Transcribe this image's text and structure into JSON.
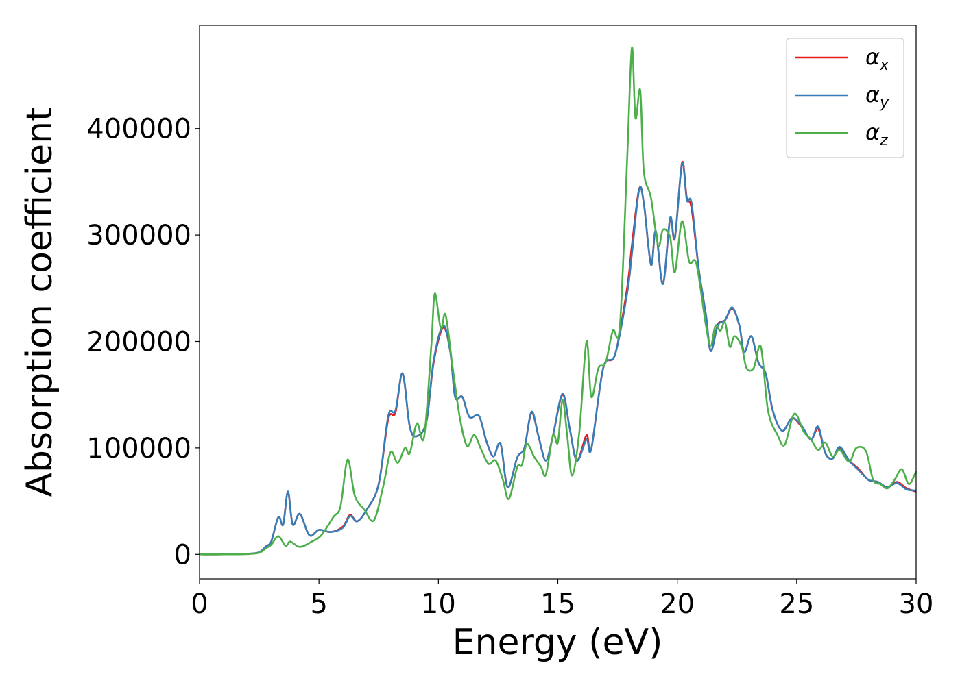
{
  "chart_data": {
    "type": "line",
    "xlabel": "Energy (eV)",
    "ylabel": "Absorption coefficient",
    "xlim": [
      0,
      30
    ],
    "ylim": [
      -23000,
      497000
    ],
    "xticks": [
      0,
      5,
      10,
      15,
      20,
      25,
      30
    ],
    "xtick_labels": [
      "0",
      "5",
      "10",
      "15",
      "20",
      "25",
      "30"
    ],
    "yticks": [
      0,
      100000,
      200000,
      300000,
      400000
    ],
    "ytick_labels": [
      "0",
      "100000",
      "200000",
      "300000",
      "400000"
    ],
    "grid": false,
    "legend_position": "top-right",
    "series": [
      {
        "name": "α_x",
        "label_main": "α",
        "label_sub": "x",
        "color": "#e41a1c",
        "points": [
          [
            0,
            0
          ],
          [
            1,
            0
          ],
          [
            2,
            500
          ],
          [
            2.5,
            2000
          ],
          [
            2.8,
            8000
          ],
          [
            3.0,
            12000
          ],
          [
            3.3,
            35000
          ],
          [
            3.5,
            28000
          ],
          [
            3.7,
            59000
          ],
          [
            3.9,
            28000
          ],
          [
            4.2,
            38000
          ],
          [
            4.6,
            18000
          ],
          [
            5.0,
            23000
          ],
          [
            5.5,
            21000
          ],
          [
            6.0,
            26000
          ],
          [
            6.3,
            37000
          ],
          [
            6.6,
            31000
          ],
          [
            7.0,
            42000
          ],
          [
            7.5,
            66000
          ],
          [
            7.9,
            127000
          ],
          [
            8.2,
            133000
          ],
          [
            8.5,
            170000
          ],
          [
            8.8,
            120000
          ],
          [
            9.1,
            111000
          ],
          [
            9.5,
            125000
          ],
          [
            9.8,
            180000
          ],
          [
            10.2,
            213000
          ],
          [
            10.5,
            190000
          ],
          [
            10.7,
            148000
          ],
          [
            11.0,
            148000
          ],
          [
            11.3,
            129000
          ],
          [
            11.7,
            130000
          ],
          [
            12.0,
            107000
          ],
          [
            12.3,
            92000
          ],
          [
            12.6,
            104000
          ],
          [
            12.9,
            63000
          ],
          [
            13.3,
            91000
          ],
          [
            13.6,
            100000
          ],
          [
            13.9,
            133000
          ],
          [
            14.2,
            110000
          ],
          [
            14.5,
            88000
          ],
          [
            14.8,
            112000
          ],
          [
            15.2,
            150000
          ],
          [
            15.5,
            118000
          ],
          [
            15.8,
            88000
          ],
          [
            16.2,
            112000
          ],
          [
            16.4,
            99000
          ],
          [
            16.9,
            175000
          ],
          [
            17.4,
            188000
          ],
          [
            17.9,
            250000
          ],
          [
            18.1,
            290000
          ],
          [
            18.4,
            343000
          ],
          [
            18.6,
            330000
          ],
          [
            18.9,
            272000
          ],
          [
            19.1,
            303000
          ],
          [
            19.4,
            254000
          ],
          [
            19.7,
            315000
          ],
          [
            19.9,
            297000
          ],
          [
            20.2,
            368000
          ],
          [
            20.4,
            335000
          ],
          [
            20.6,
            325000
          ],
          [
            20.9,
            268000
          ],
          [
            21.2,
            225000
          ],
          [
            21.4,
            191000
          ],
          [
            21.7,
            216000
          ],
          [
            22.0,
            220000
          ],
          [
            22.3,
            231000
          ],
          [
            22.6,
            215000
          ],
          [
            22.8,
            190000
          ],
          [
            23.1,
            205000
          ],
          [
            23.4,
            180000
          ],
          [
            23.7,
            170000
          ],
          [
            24.0,
            135000
          ],
          [
            24.4,
            116000
          ],
          [
            24.8,
            128000
          ],
          [
            25.2,
            120000
          ],
          [
            25.6,
            108000
          ],
          [
            25.9,
            118000
          ],
          [
            26.2,
            95000
          ],
          [
            26.5,
            90000
          ],
          [
            26.8,
            100000
          ],
          [
            27.2,
            88000
          ],
          [
            27.6,
            80000
          ],
          [
            28.0,
            70000
          ],
          [
            28.4,
            68000
          ],
          [
            28.8,
            63000
          ],
          [
            29.2,
            68000
          ],
          [
            29.6,
            62000
          ],
          [
            30.0,
            59000
          ]
        ]
      },
      {
        "name": "α_y",
        "label_main": "α",
        "label_sub": "y",
        "color": "#377eb8",
        "points": [
          [
            0,
            0
          ],
          [
            1,
            0
          ],
          [
            2,
            500
          ],
          [
            2.5,
            2000
          ],
          [
            2.8,
            8000
          ],
          [
            3.0,
            12000
          ],
          [
            3.3,
            35000
          ],
          [
            3.5,
            28000
          ],
          [
            3.7,
            59000
          ],
          [
            3.9,
            28000
          ],
          [
            4.2,
            38000
          ],
          [
            4.6,
            18000
          ],
          [
            5.0,
            23000
          ],
          [
            5.5,
            21000
          ],
          [
            6.0,
            25000
          ],
          [
            6.3,
            36000
          ],
          [
            6.6,
            31000
          ],
          [
            7.0,
            42000
          ],
          [
            7.5,
            66000
          ],
          [
            7.9,
            130000
          ],
          [
            8.2,
            135000
          ],
          [
            8.5,
            170000
          ],
          [
            8.8,
            120000
          ],
          [
            9.1,
            111000
          ],
          [
            9.5,
            125000
          ],
          [
            9.8,
            182000
          ],
          [
            10.2,
            215000
          ],
          [
            10.5,
            190000
          ],
          [
            10.7,
            148000
          ],
          [
            11.0,
            148000
          ],
          [
            11.3,
            129000
          ],
          [
            11.7,
            130000
          ],
          [
            12.0,
            107000
          ],
          [
            12.3,
            92000
          ],
          [
            12.6,
            104000
          ],
          [
            12.9,
            63000
          ],
          [
            13.3,
            91000
          ],
          [
            13.6,
            100000
          ],
          [
            13.9,
            134000
          ],
          [
            14.2,
            110000
          ],
          [
            14.5,
            88000
          ],
          [
            14.8,
            112000
          ],
          [
            15.2,
            151000
          ],
          [
            15.5,
            118000
          ],
          [
            15.8,
            88000
          ],
          [
            16.2,
            108000
          ],
          [
            16.4,
            99000
          ],
          [
            16.9,
            175000
          ],
          [
            17.4,
            188000
          ],
          [
            17.9,
            245000
          ],
          [
            18.1,
            282000
          ],
          [
            18.4,
            342000
          ],
          [
            18.6,
            330000
          ],
          [
            18.9,
            272000
          ],
          [
            19.1,
            304000
          ],
          [
            19.4,
            254000
          ],
          [
            19.7,
            316000
          ],
          [
            19.9,
            298000
          ],
          [
            20.2,
            367000
          ],
          [
            20.4,
            333000
          ],
          [
            20.6,
            330000
          ],
          [
            20.9,
            268000
          ],
          [
            21.2,
            225000
          ],
          [
            21.4,
            191000
          ],
          [
            21.7,
            215000
          ],
          [
            22.0,
            220000
          ],
          [
            22.3,
            232000
          ],
          [
            22.6,
            215000
          ],
          [
            22.8,
            190000
          ],
          [
            23.1,
            205000
          ],
          [
            23.4,
            180000
          ],
          [
            23.7,
            170000
          ],
          [
            24.0,
            135000
          ],
          [
            24.4,
            116000
          ],
          [
            24.8,
            128000
          ],
          [
            25.2,
            121000
          ],
          [
            25.6,
            108000
          ],
          [
            25.9,
            120000
          ],
          [
            26.2,
            95000
          ],
          [
            26.5,
            90000
          ],
          [
            26.8,
            101000
          ],
          [
            27.2,
            88000
          ],
          [
            27.6,
            79000
          ],
          [
            28.0,
            70000
          ],
          [
            28.4,
            68000
          ],
          [
            28.8,
            63000
          ],
          [
            29.2,
            67000
          ],
          [
            29.6,
            61000
          ],
          [
            30.0,
            60000
          ]
        ]
      },
      {
        "name": "α_z",
        "label_main": "α",
        "label_sub": "z",
        "color": "#4daf4a",
        "points": [
          [
            0,
            0
          ],
          [
            1,
            0
          ],
          [
            2,
            300
          ],
          [
            2.5,
            1500
          ],
          [
            2.8,
            6000
          ],
          [
            3.0,
            9000
          ],
          [
            3.3,
            17000
          ],
          [
            3.6,
            8000
          ],
          [
            3.8,
            12000
          ],
          [
            4.2,
            7000
          ],
          [
            4.7,
            12000
          ],
          [
            5.1,
            18000
          ],
          [
            5.6,
            35000
          ],
          [
            5.9,
            45000
          ],
          [
            6.2,
            89000
          ],
          [
            6.5,
            55000
          ],
          [
            6.9,
            42000
          ],
          [
            7.3,
            32000
          ],
          [
            7.7,
            65000
          ],
          [
            8.0,
            96000
          ],
          [
            8.3,
            86000
          ],
          [
            8.6,
            100000
          ],
          [
            8.8,
            95000
          ],
          [
            9.1,
            123000
          ],
          [
            9.4,
            110000
          ],
          [
            9.7,
            195000
          ],
          [
            9.85,
            245000
          ],
          [
            10.1,
            212000
          ],
          [
            10.3,
            225000
          ],
          [
            10.6,
            175000
          ],
          [
            10.9,
            128000
          ],
          [
            11.2,
            102000
          ],
          [
            11.5,
            112000
          ],
          [
            11.8,
            98000
          ],
          [
            12.1,
            85000
          ],
          [
            12.4,
            88000
          ],
          [
            12.7,
            70000
          ],
          [
            12.95,
            52000
          ],
          [
            13.3,
            82000
          ],
          [
            13.5,
            84000
          ],
          [
            13.7,
            104000
          ],
          [
            14.0,
            92000
          ],
          [
            14.3,
            82000
          ],
          [
            14.5,
            75000
          ],
          [
            14.8,
            112000
          ],
          [
            15.0,
            105000
          ],
          [
            15.2,
            145000
          ],
          [
            15.4,
            110000
          ],
          [
            15.6,
            74000
          ],
          [
            15.9,
            115000
          ],
          [
            16.2,
            200000
          ],
          [
            16.4,
            148000
          ],
          [
            16.7,
            175000
          ],
          [
            17.0,
            180000
          ],
          [
            17.3,
            210000
          ],
          [
            17.6,
            215000
          ],
          [
            17.9,
            370000
          ],
          [
            18.1,
            476000
          ],
          [
            18.25,
            410000
          ],
          [
            18.45,
            436000
          ],
          [
            18.6,
            360000
          ],
          [
            18.9,
            335000
          ],
          [
            19.2,
            290000
          ],
          [
            19.4,
            305000
          ],
          [
            19.7,
            298000
          ],
          [
            19.9,
            265000
          ],
          [
            20.2,
            313000
          ],
          [
            20.5,
            275000
          ],
          [
            20.8,
            273000
          ],
          [
            21.2,
            215000
          ],
          [
            21.4,
            196000
          ],
          [
            21.6,
            215000
          ],
          [
            21.8,
            210000
          ],
          [
            22.0,
            218000
          ],
          [
            22.2,
            195000
          ],
          [
            22.4,
            205000
          ],
          [
            22.7,
            195000
          ],
          [
            22.9,
            175000
          ],
          [
            23.2,
            175000
          ],
          [
            23.5,
            195000
          ],
          [
            23.8,
            135000
          ],
          [
            24.2,
            112000
          ],
          [
            24.5,
            103000
          ],
          [
            24.9,
            132000
          ],
          [
            25.3,
            115000
          ],
          [
            25.6,
            108000
          ],
          [
            25.9,
            98000
          ],
          [
            26.2,
            105000
          ],
          [
            26.5,
            92000
          ],
          [
            26.8,
            98000
          ],
          [
            27.2,
            87000
          ],
          [
            27.5,
            100000
          ],
          [
            27.9,
            97000
          ],
          [
            28.2,
            70000
          ],
          [
            28.5,
            66000
          ],
          [
            28.8,
            62000
          ],
          [
            29.1,
            70000
          ],
          [
            29.4,
            80000
          ],
          [
            29.7,
            66000
          ],
          [
            30.0,
            78000
          ]
        ]
      }
    ]
  }
}
